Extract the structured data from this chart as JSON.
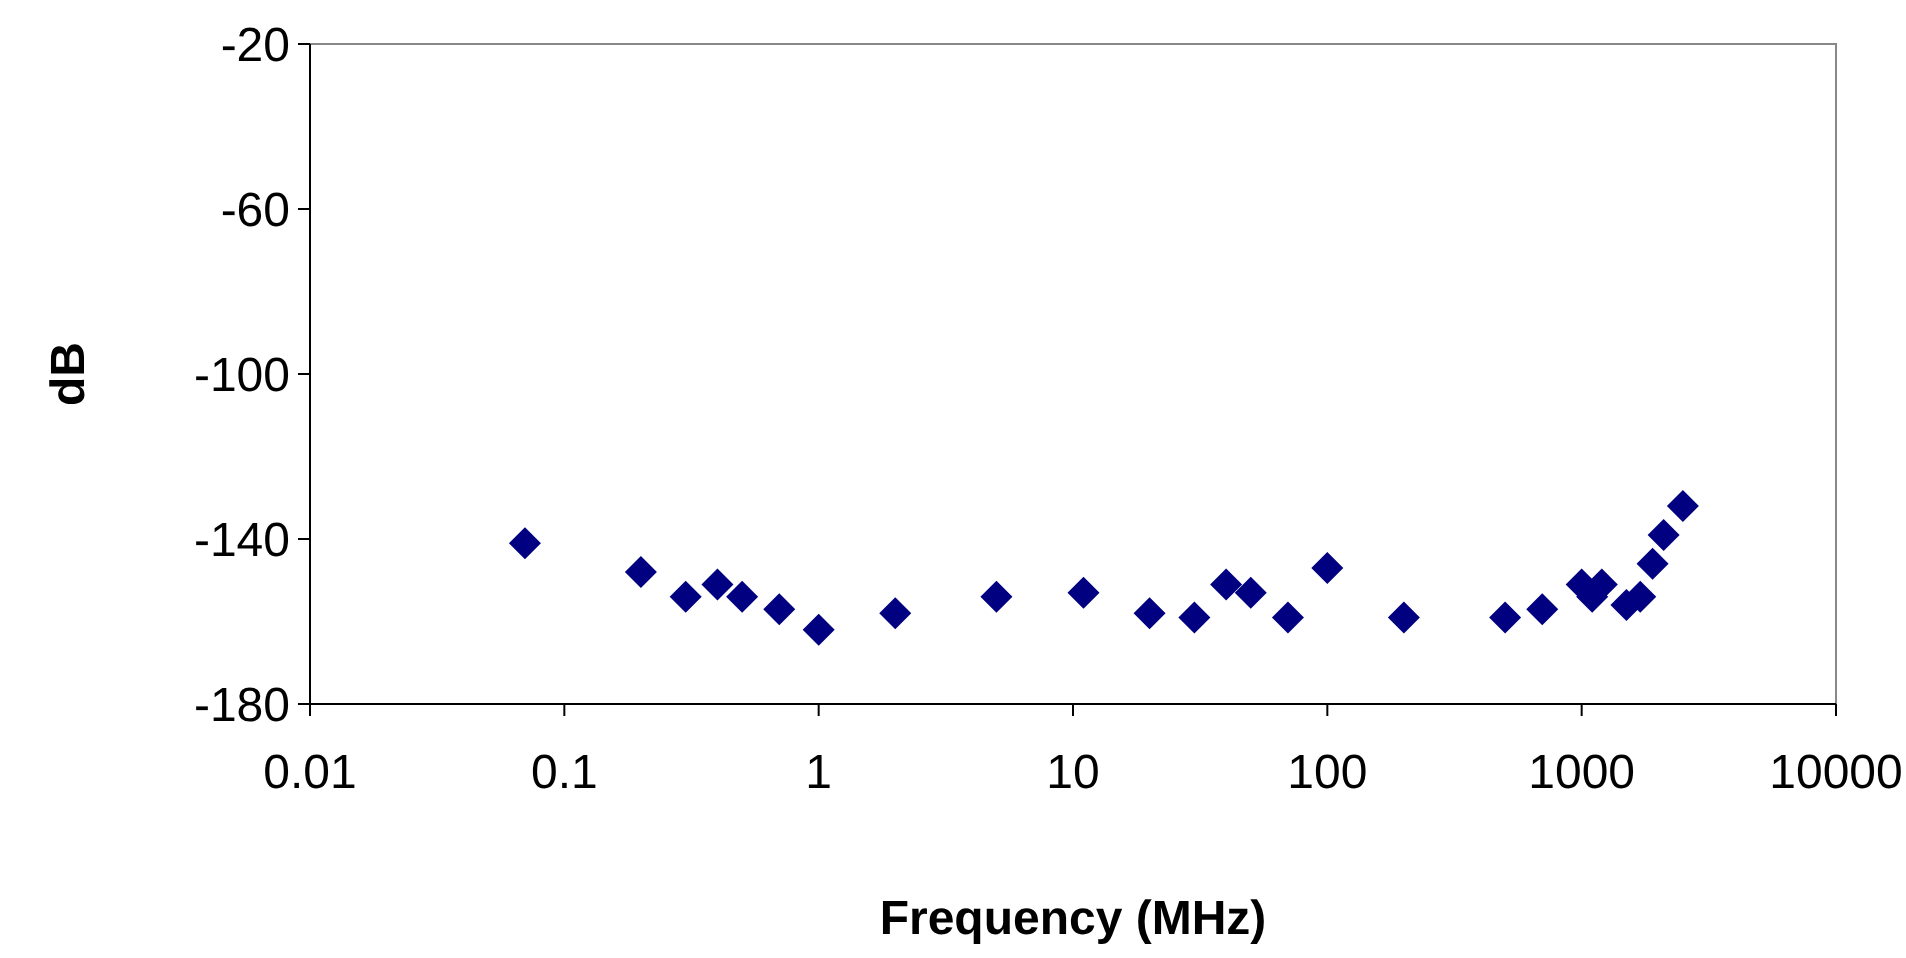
{
  "chart_data": {
    "type": "scatter",
    "xlabel": "Frequency (MHz)",
    "ylabel": "dB",
    "log": "x",
    "grid": false,
    "marker": "diamond",
    "xlim": [
      0.01,
      10000
    ],
    "xticks": [
      0.01,
      0.1,
      1,
      10,
      100,
      1000,
      10000
    ],
    "ylim": [
      -180,
      -20
    ],
    "yticks": [
      -180,
      -140,
      -100,
      -60,
      -20
    ],
    "series": [
      {
        "color": "#000080",
        "x": [
          0.07,
          0.2,
          0.3,
          0.4,
          0.5,
          0.7,
          1,
          2,
          5,
          11,
          20,
          30,
          40,
          50,
          70,
          100,
          200,
          500,
          700,
          1000,
          1100,
          1200,
          1500,
          1700,
          1900,
          2100,
          2500
        ],
        "values": [
          -141,
          -148,
          -154,
          -151,
          -154,
          -157,
          -162,
          -158,
          -154,
          -153,
          -158,
          -159,
          -151,
          -153,
          -159,
          -147,
          -159,
          -159,
          -157,
          -151,
          -154,
          -151,
          -156,
          -154,
          -146,
          -139,
          -132
        ]
      }
    ]
  }
}
